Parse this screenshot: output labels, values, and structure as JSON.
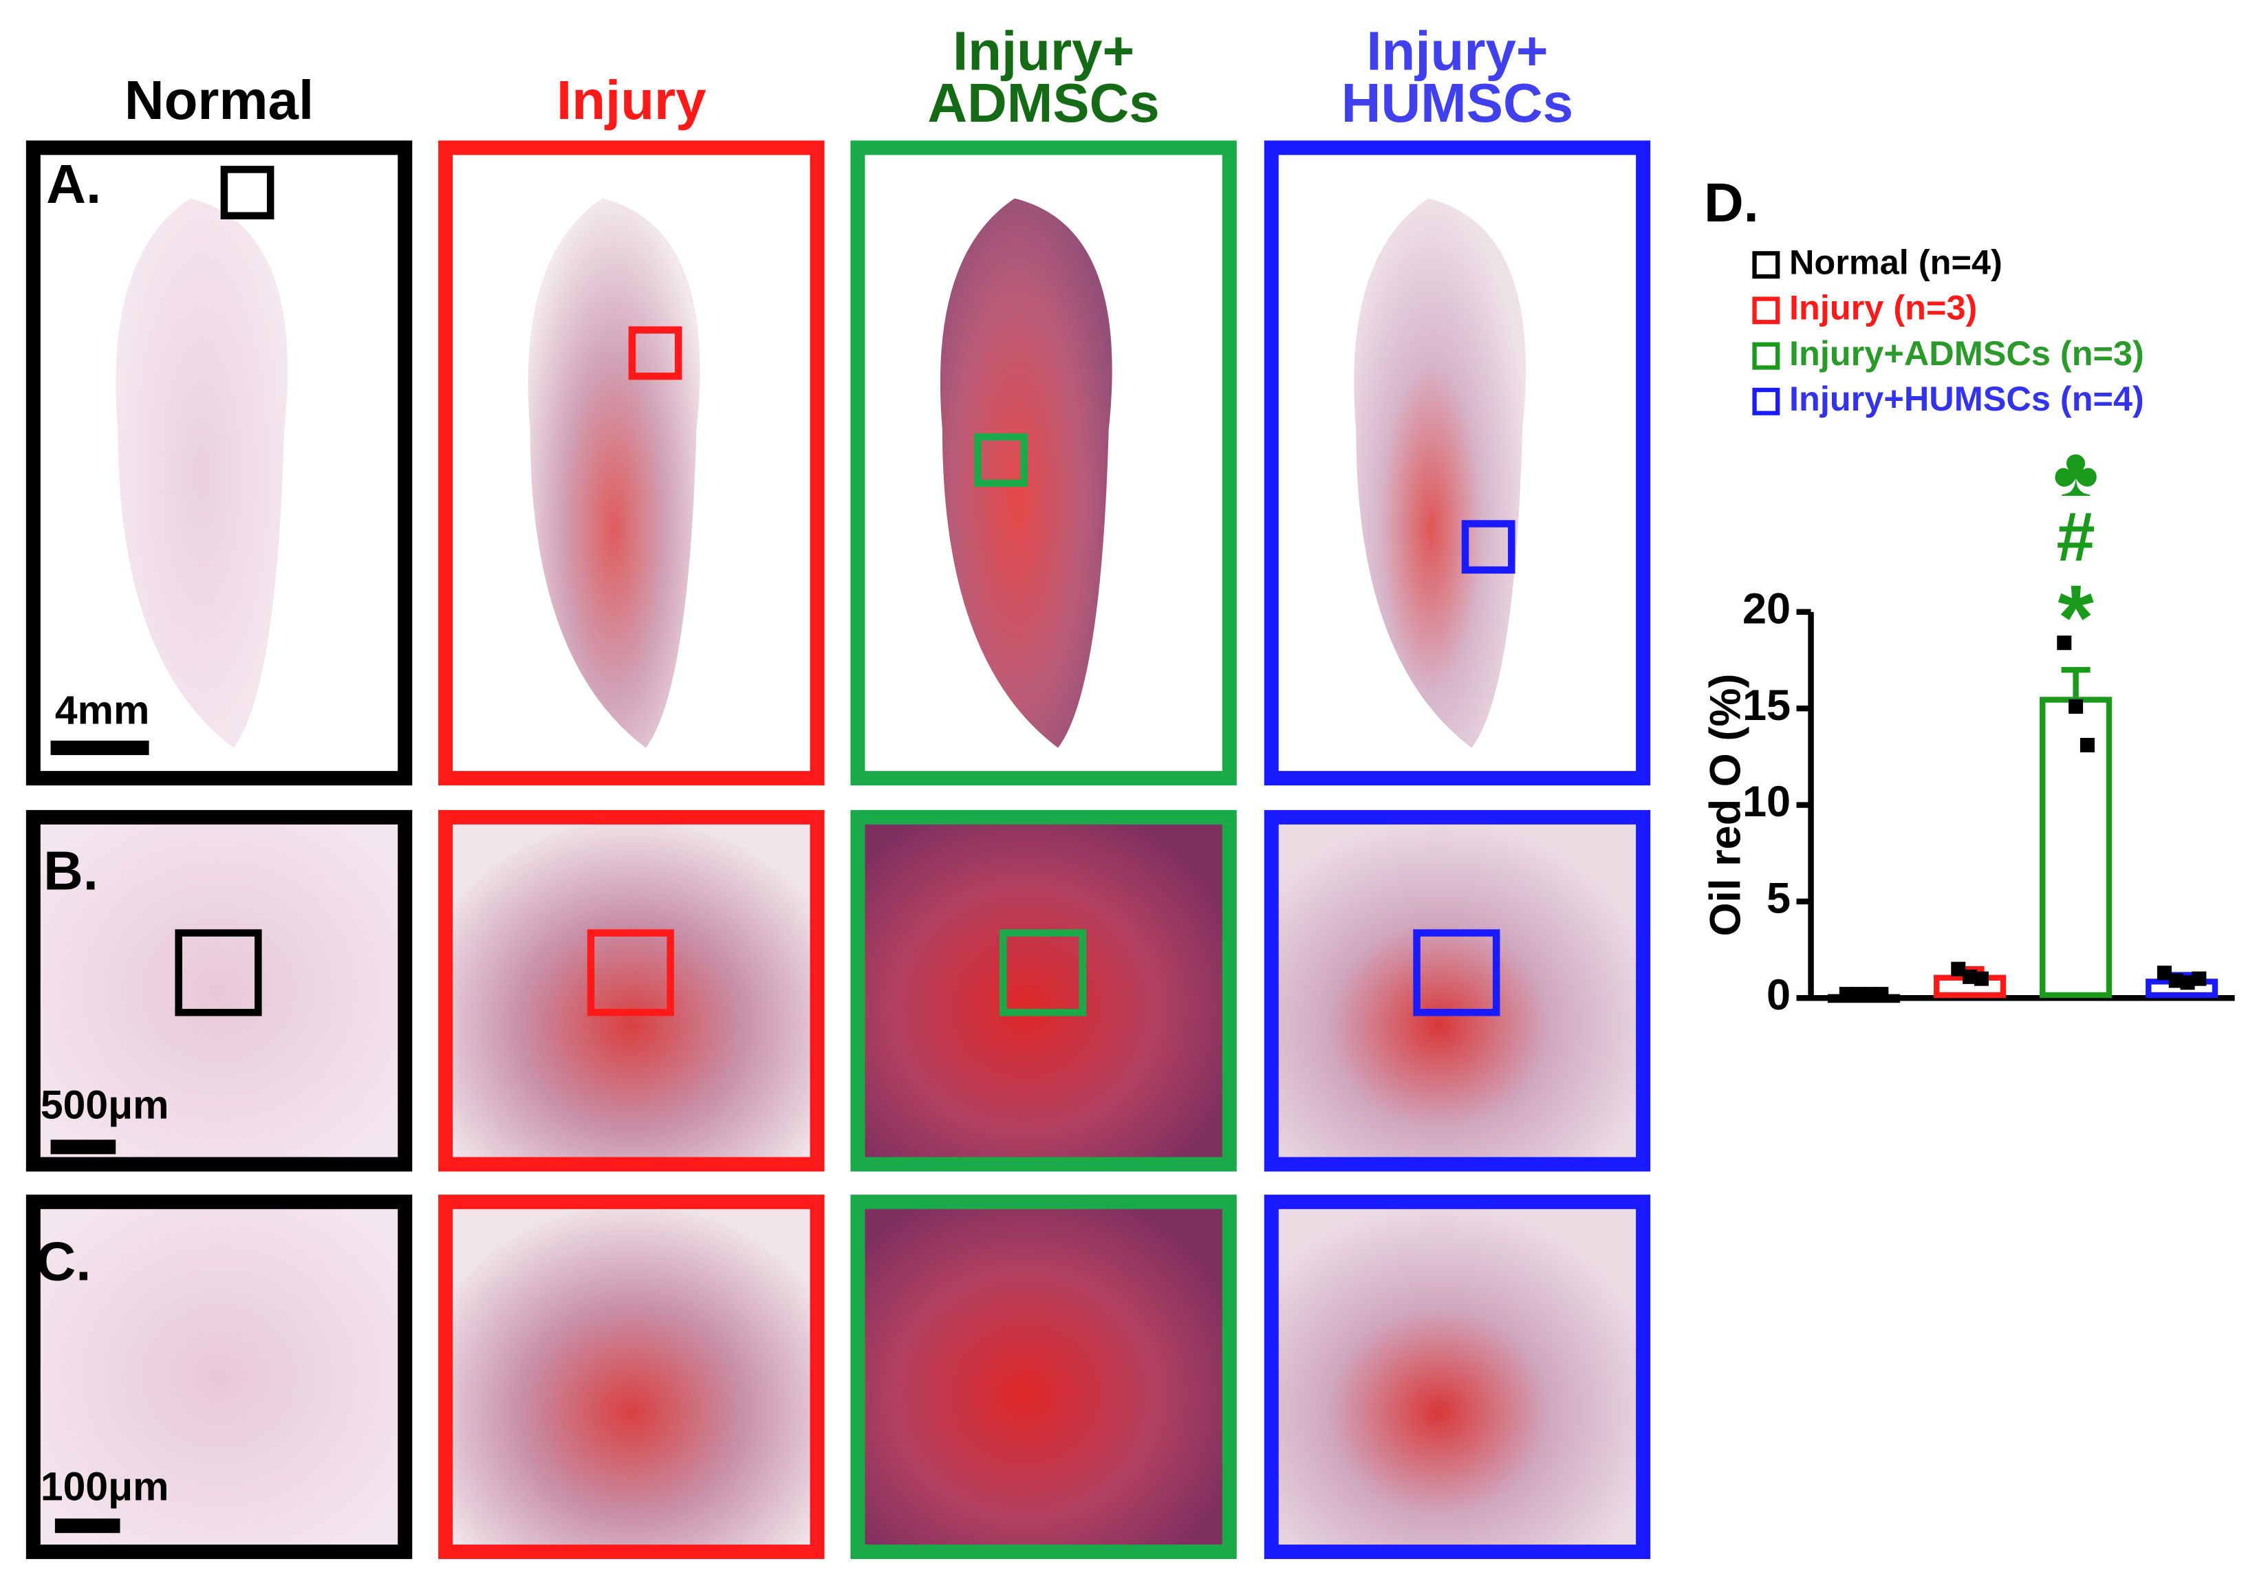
{
  "columns": [
    {
      "title": [
        "Normal"
      ],
      "color": "#000000",
      "frame": "#000000"
    },
    {
      "title": [
        "Injury"
      ],
      "color": "#ff1a1a",
      "frame": "#ff1a1a"
    },
    {
      "title": [
        "Injury+",
        "ADMSCs"
      ],
      "color": "#156b15",
      "frame": "#1aaa4a"
    },
    {
      "title": [
        "Injury+",
        "HUMSCs"
      ],
      "color": "#4040ee",
      "frame": "#1a1aff"
    }
  ],
  "rows": [
    {
      "label": "A.",
      "scale_bar": "4mm"
    },
    {
      "label": "B.",
      "scale_bar": "500μm"
    },
    {
      "label": "C.",
      "scale_bar": "100μm"
    }
  ],
  "chart_data": {
    "type": "bar",
    "panel_label": "D.",
    "y_label": "Oil red O (%)",
    "categories": [
      null,
      null,
      null,
      null
    ],
    "series": [
      {
        "name": "Normal (n=4)",
        "color": "#000000",
        "text_color": "#000000",
        "values": [
          0.2,
          null,
          null,
          null
        ],
        "errors": [
          0.05,
          null,
          null,
          null
        ],
        "points": [
          0.2,
          0.2,
          0.2,
          0.2
        ]
      },
      {
        "name": "Injury (n=3)",
        "color": "#ff1a1a",
        "text_color": "#ff1a1a",
        "values": [
          null,
          1.2,
          null,
          null
        ],
        "errors": [
          null,
          0.3,
          null,
          null
        ],
        "points": [
          1.5,
          1.1,
          1.0
        ]
      },
      {
        "name": "Injury+ADMSCs (n=3)",
        "color": "#1a9a1a",
        "text_color": "#2a9a2a",
        "values": [
          null,
          null,
          15.6,
          null
        ],
        "errors": [
          null,
          null,
          1.4,
          null
        ],
        "points": [
          18.4,
          15.1,
          13.1
        ]
      },
      {
        "name": "Injury+HUMSCs (n=4)",
        "color": "#1a1aff",
        "text_color": "#3333ee",
        "values": [
          null,
          null,
          null,
          1.0
        ],
        "errors": [
          null,
          null,
          null,
          0.2
        ],
        "points": [
          1.3,
          0.9,
          0.8,
          1.0
        ]
      }
    ],
    "annotations": [
      "♣",
      "#",
      "*"
    ],
    "annotation_color": "#1a9a1a",
    "ylim": [
      0,
      20
    ],
    "yticks": [
      0,
      5,
      10,
      15,
      20
    ]
  }
}
